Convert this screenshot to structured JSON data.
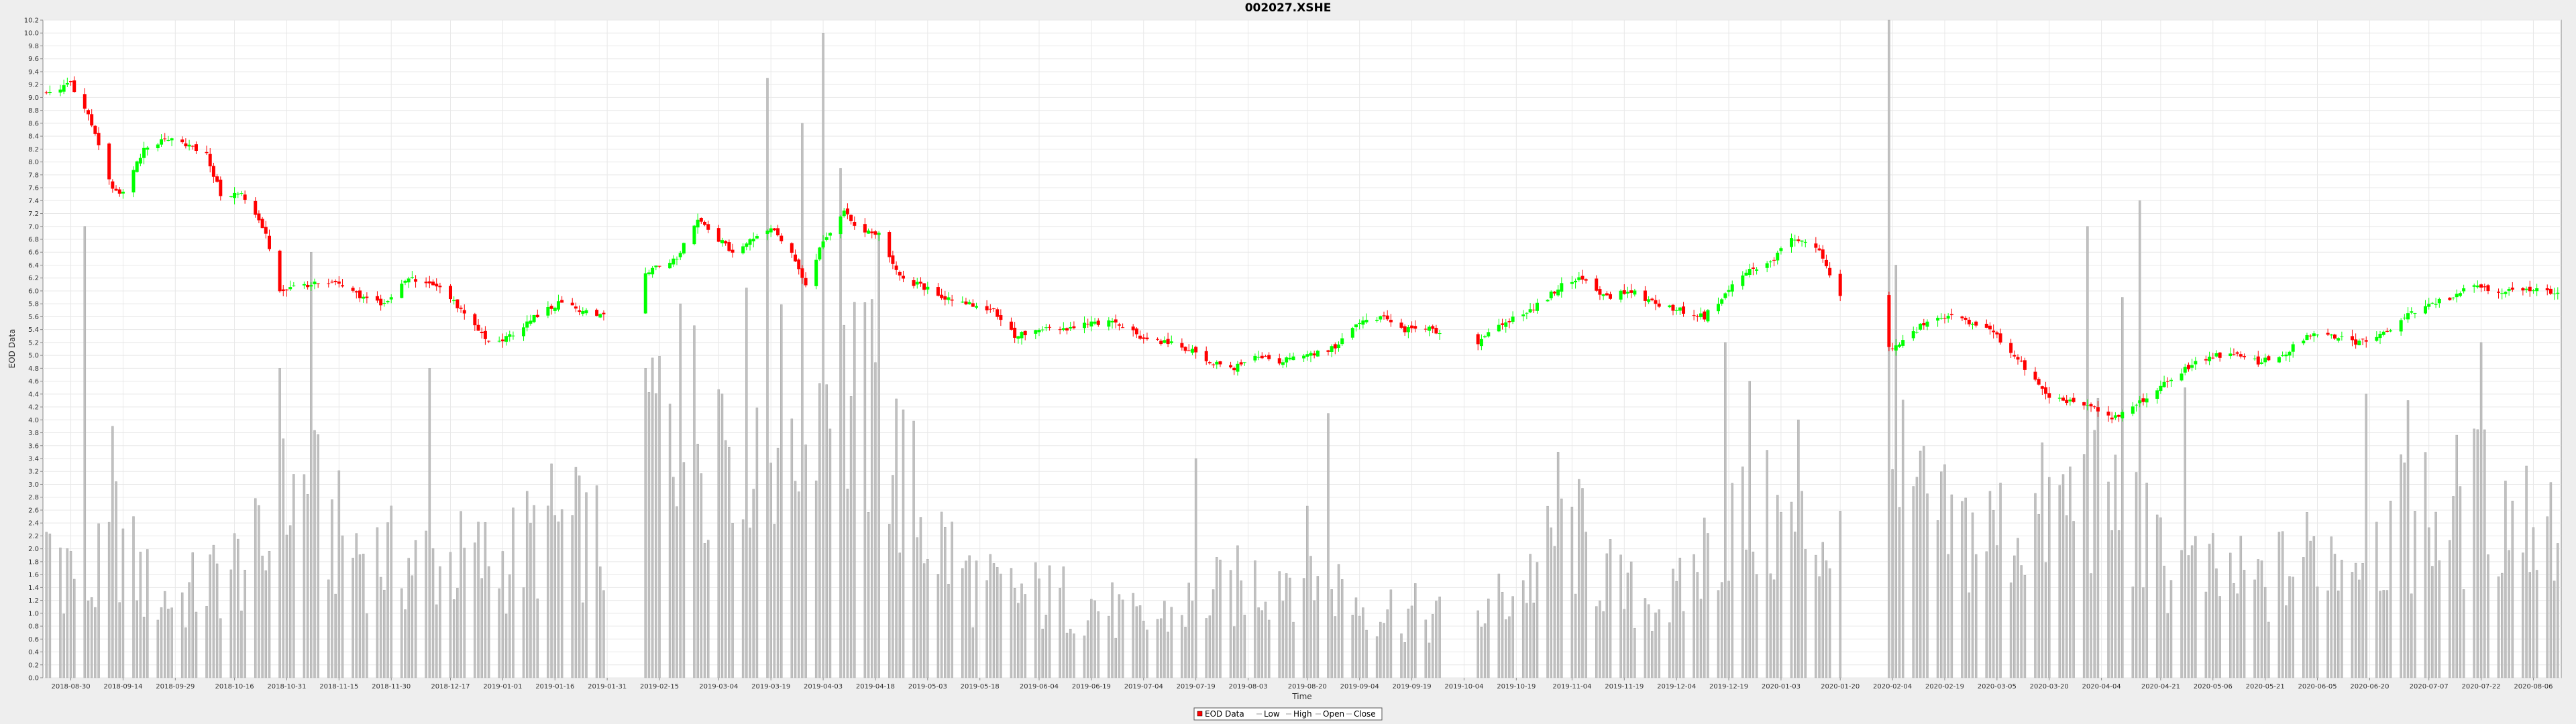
{
  "chart_data": {
    "type": "candlestick",
    "title": "002027.XSHE",
    "xlabel": "Time",
    "ylabel": "EOD Data",
    "ylim": [
      0.0,
      10.2
    ],
    "y_ticks": [
      "0.0",
      "0.2",
      "0.4",
      "0.6",
      "0.8",
      "1.0",
      "1.2",
      "1.4",
      "1.6",
      "1.8",
      "2.0",
      "2.2",
      "2.4",
      "2.6",
      "2.8",
      "3.0",
      "3.2",
      "3.4",
      "3.6",
      "3.8",
      "4.0",
      "4.2",
      "4.4",
      "4.6",
      "4.8",
      "5.0",
      "5.2",
      "5.4",
      "5.6",
      "5.8",
      "6.0",
      "6.2",
      "6.4",
      "6.6",
      "6.8",
      "7.0",
      "7.2",
      "7.4",
      "7.6",
      "7.8",
      "8.0",
      "8.2",
      "8.4",
      "8.6",
      "8.8",
      "9.0",
      "9.2",
      "9.4",
      "9.6",
      "9.8",
      "10.0",
      "10.2"
    ],
    "x_ticks": [
      "2018-08-30",
      "2018-09-14",
      "2018-09-29",
      "2018-10-16",
      "2018-10-31",
      "2018-11-15",
      "2018-11-30",
      "2018-12-17",
      "2019-01-01",
      "2019-01-16",
      "2019-01-31",
      "2019-02-15",
      "2019-03-04",
      "2019-03-19",
      "2019-04-03",
      "2019-04-18",
      "2019-05-03",
      "2019-05-18",
      "2019-06-04",
      "2019-06-19",
      "2019-07-04",
      "2019-07-19",
      "2019-08-03",
      "2019-08-20",
      "2019-09-04",
      "2019-09-19",
      "2019-10-04",
      "2019-10-19",
      "2019-11-04",
      "2019-11-19",
      "2019-12-04",
      "2019-12-19",
      "2020-01-03",
      "2020-01-20",
      "2020-02-04",
      "2020-02-19",
      "2020-03-05",
      "2020-03-20",
      "2020-04-04",
      "2020-04-21",
      "2020-05-06",
      "2020-05-21",
      "2020-06-05",
      "2020-06-20",
      "2020-07-07",
      "2020-07-22",
      "2020-08-06"
    ],
    "x_range": [
      "2018-08-22",
      "2020-08-14"
    ],
    "grid": true,
    "legend_position": "bottom",
    "legend": [
      "EOD Data",
      "Low",
      "High",
      "Open",
      "Close"
    ],
    "colors": {
      "up": "#00ff00",
      "down": "#ff0000",
      "volume": "#c0c0c0",
      "grid": "#e8e8e8",
      "plot_bg": "#ffffff"
    },
    "price_anchors": [
      [
        "2018-08-23",
        9.1
      ],
      [
        "2018-08-30",
        9.2
      ],
      [
        "2018-09-05",
        8.6
      ],
      [
        "2018-09-11",
        7.6
      ],
      [
        "2018-09-14",
        7.5
      ],
      [
        "2018-09-20",
        8.2
      ],
      [
        "2018-09-28",
        8.4
      ],
      [
        "2018-10-08",
        8.1
      ],
      [
        "2018-10-12",
        7.5
      ],
      [
        "2018-10-18",
        7.5
      ],
      [
        "2018-10-25",
        6.9
      ],
      [
        "2018-10-29",
        6.0
      ],
      [
        "2018-11-05",
        6.1
      ],
      [
        "2018-11-08",
        6.1
      ],
      [
        "2018-11-15",
        6.1
      ],
      [
        "2018-11-21",
        5.9
      ],
      [
        "2018-11-28",
        5.8
      ],
      [
        "2018-12-05",
        6.2
      ],
      [
        "2018-12-13",
        6.1
      ],
      [
        "2018-12-20",
        5.7
      ],
      [
        "2018-12-28",
        5.2
      ],
      [
        "2019-01-04",
        5.3
      ],
      [
        "2019-01-10",
        5.6
      ],
      [
        "2019-01-17",
        5.8
      ],
      [
        "2019-01-24",
        5.7
      ],
      [
        "2019-01-31",
        5.6
      ],
      [
        "2019-02-12",
        6.3
      ],
      [
        "2019-02-20",
        6.5
      ],
      [
        "2019-02-26",
        7.1
      ],
      [
        "2019-03-04",
        6.8
      ],
      [
        "2019-03-08",
        6.6
      ],
      [
        "2019-03-14",
        6.8
      ],
      [
        "2019-03-19",
        7.0
      ],
      [
        "2019-03-25",
        6.6
      ],
      [
        "2019-03-29",
        6.1
      ],
      [
        "2019-04-03",
        6.8
      ],
      [
        "2019-04-09",
        7.2
      ],
      [
        "2019-04-15",
        6.9
      ],
      [
        "2019-04-19",
        6.9
      ],
      [
        "2019-04-25",
        6.2
      ],
      [
        "2019-04-30",
        6.1
      ],
      [
        "2019-05-08",
        5.9
      ],
      [
        "2019-05-15",
        5.8
      ],
      [
        "2019-05-22",
        5.7
      ],
      [
        "2019-05-28",
        5.3
      ],
      [
        "2019-06-05",
        5.4
      ],
      [
        "2019-06-12",
        5.4
      ],
      [
        "2019-06-19",
        5.5
      ],
      [
        "2019-06-26",
        5.5
      ],
      [
        "2019-07-03",
        5.3
      ],
      [
        "2019-07-10",
        5.2
      ],
      [
        "2019-07-17",
        5.1
      ],
      [
        "2019-07-23",
        4.9
      ],
      [
        "2019-07-30",
        4.8
      ],
      [
        "2019-08-06",
        5.0
      ],
      [
        "2019-08-12",
        4.9
      ],
      [
        "2019-08-20",
        5.0
      ],
      [
        "2019-08-27",
        5.1
      ],
      [
        "2019-09-04",
        5.5
      ],
      [
        "2019-09-10",
        5.6
      ],
      [
        "2019-09-17",
        5.4
      ],
      [
        "2019-09-24",
        5.4
      ],
      [
        "2019-10-01",
        5.3
      ],
      [
        "2019-10-08",
        5.2
      ],
      [
        "2019-10-14",
        5.5
      ],
      [
        "2019-10-21",
        5.6
      ],
      [
        "2019-10-28",
        5.9
      ],
      [
        "2019-11-01",
        6.1
      ],
      [
        "2019-11-07",
        6.2
      ],
      [
        "2019-11-14",
        5.9
      ],
      [
        "2019-11-21",
        6.0
      ],
      [
        "2019-11-28",
        5.8
      ],
      [
        "2019-12-05",
        5.7
      ],
      [
        "2019-12-12",
        5.6
      ],
      [
        "2019-12-17",
        5.9
      ],
      [
        "2019-12-24",
        6.3
      ],
      [
        "2019-12-30",
        6.4
      ],
      [
        "2020-01-06",
        6.8
      ],
      [
        "2020-01-13",
        6.7
      ],
      [
        "2020-01-16",
        6.4
      ],
      [
        "2020-01-20",
        5.9
      ],
      [
        "2020-01-23",
        5.8
      ],
      [
        "2020-02-03",
        5.1
      ],
      [
        "2020-02-07",
        5.2
      ],
      [
        "2020-02-13",
        5.5
      ],
      [
        "2020-02-20",
        5.6
      ],
      [
        "2020-02-28",
        5.5
      ],
      [
        "2020-03-05",
        5.3
      ],
      [
        "2020-03-10",
        5.0
      ],
      [
        "2020-03-16",
        4.6
      ],
      [
        "2020-03-20",
        4.3
      ],
      [
        "2020-03-26",
        4.3
      ],
      [
        "2020-04-01",
        4.2
      ],
      [
        "2020-04-07",
        4.0
      ],
      [
        "2020-04-13",
        4.2
      ],
      [
        "2020-04-21",
        4.5
      ],
      [
        "2020-04-28",
        4.8
      ],
      [
        "2020-05-06",
        5.0
      ],
      [
        "2020-05-12",
        5.0
      ],
      [
        "2020-05-19",
        4.9
      ],
      [
        "2020-05-26",
        5.0
      ],
      [
        "2020-06-02",
        5.3
      ],
      [
        "2020-06-09",
        5.3
      ],
      [
        "2020-06-16",
        5.2
      ],
      [
        "2020-06-23",
        5.3
      ],
      [
        "2020-06-30",
        5.6
      ],
      [
        "2020-07-06",
        5.8
      ],
      [
        "2020-07-13",
        5.9
      ],
      [
        "2020-07-20",
        6.1
      ],
      [
        "2020-07-27",
        6.0
      ],
      [
        "2020-08-03",
        6.0
      ],
      [
        "2020-08-10",
        6.0
      ],
      [
        "2020-08-13",
        6.0
      ]
    ],
    "volume_anchors": [
      [
        "2018-08-23",
        2.5
      ],
      [
        "2018-09-05",
        1.5
      ],
      [
        "2018-09-12",
        2.5
      ],
      [
        "2018-09-20",
        1.6
      ],
      [
        "2018-09-29",
        1.3
      ],
      [
        "2018-10-16",
        1.9
      ],
      [
        "2018-10-26",
        2.2
      ],
      [
        "2018-10-31",
        3.1
      ],
      [
        "2018-11-05",
        3.2
      ],
      [
        "2018-11-15",
        2.4
      ],
      [
        "2018-11-30",
        2.0
      ],
      [
        "2018-12-17",
        2.0
      ],
      [
        "2019-01-01",
        2.0
      ],
      [
        "2019-01-16",
        2.6
      ],
      [
        "2019-01-31",
        2.3
      ],
      [
        "2019-02-12",
        4.5
      ],
      [
        "2019-02-22",
        4.2
      ],
      [
        "2019-03-05",
        4.8
      ],
      [
        "2019-03-19",
        4.4
      ],
      [
        "2019-04-03",
        5.0
      ],
      [
        "2019-04-18",
        4.4
      ],
      [
        "2019-05-03",
        2.6
      ],
      [
        "2019-05-18",
        1.5
      ],
      [
        "2019-06-04",
        1.4
      ],
      [
        "2019-06-19",
        1.3
      ],
      [
        "2019-07-04",
        0.9
      ],
      [
        "2019-07-19",
        1.3
      ],
      [
        "2019-08-03",
        1.6
      ],
      [
        "2019-08-20",
        2.0
      ],
      [
        "2019-09-04",
        1.3
      ],
      [
        "2019-09-19",
        1.1
      ],
      [
        "2019-10-04",
        0.9
      ],
      [
        "2019-10-19",
        1.5
      ],
      [
        "2019-11-04",
        2.5
      ],
      [
        "2019-11-19",
        1.4
      ],
      [
        "2019-12-04",
        1.3
      ],
      [
        "2019-12-19",
        2.8
      ],
      [
        "2020-01-03",
        2.6
      ],
      [
        "2020-01-20",
        2.4
      ],
      [
        "2020-02-04",
        3.4
      ],
      [
        "2020-02-19",
        2.5
      ],
      [
        "2020-03-05",
        2.5
      ],
      [
        "2020-03-20",
        2.8
      ],
      [
        "2020-04-04",
        3.3
      ],
      [
        "2020-04-21",
        2.0
      ],
      [
        "2020-05-06",
        1.7
      ],
      [
        "2020-05-21",
        1.6
      ],
      [
        "2020-06-05",
        2.2
      ],
      [
        "2020-06-20",
        2.3
      ],
      [
        "2020-07-07",
        2.8
      ],
      [
        "2020-07-22",
        3.0
      ],
      [
        "2020-08-06",
        2.8
      ]
    ],
    "volume_spikes": [
      [
        "2018-09-03",
        7.0
      ],
      [
        "2018-09-11",
        3.9
      ],
      [
        "2018-10-29",
        4.8
      ],
      [
        "2018-11-07",
        6.6
      ],
      [
        "2018-12-11",
        4.8
      ],
      [
        "2019-02-11",
        4.8
      ],
      [
        "2019-02-21",
        5.8
      ],
      [
        "2019-03-18",
        9.3
      ],
      [
        "2019-03-28",
        8.6
      ],
      [
        "2019-04-03",
        10.0
      ],
      [
        "2019-04-08",
        7.9
      ],
      [
        "2019-04-19",
        6.9
      ],
      [
        "2019-07-19",
        3.4
      ],
      [
        "2019-08-26",
        4.1
      ],
      [
        "2019-10-31",
        3.5
      ],
      [
        "2019-12-18",
        5.2
      ],
      [
        "2019-12-25",
        4.6
      ],
      [
        "2020-01-08",
        4.0
      ],
      [
        "2020-02-03",
        10.2
      ],
      [
        "2020-02-05",
        6.4
      ],
      [
        "2020-03-31",
        7.0
      ],
      [
        "2020-04-10",
        5.9
      ],
      [
        "2020-04-15",
        7.4
      ],
      [
        "2020-04-28",
        4.5
      ],
      [
        "2020-06-19",
        4.4
      ],
      [
        "2020-07-01",
        4.3
      ],
      [
        "2020-07-22",
        5.2
      ]
    ]
  }
}
